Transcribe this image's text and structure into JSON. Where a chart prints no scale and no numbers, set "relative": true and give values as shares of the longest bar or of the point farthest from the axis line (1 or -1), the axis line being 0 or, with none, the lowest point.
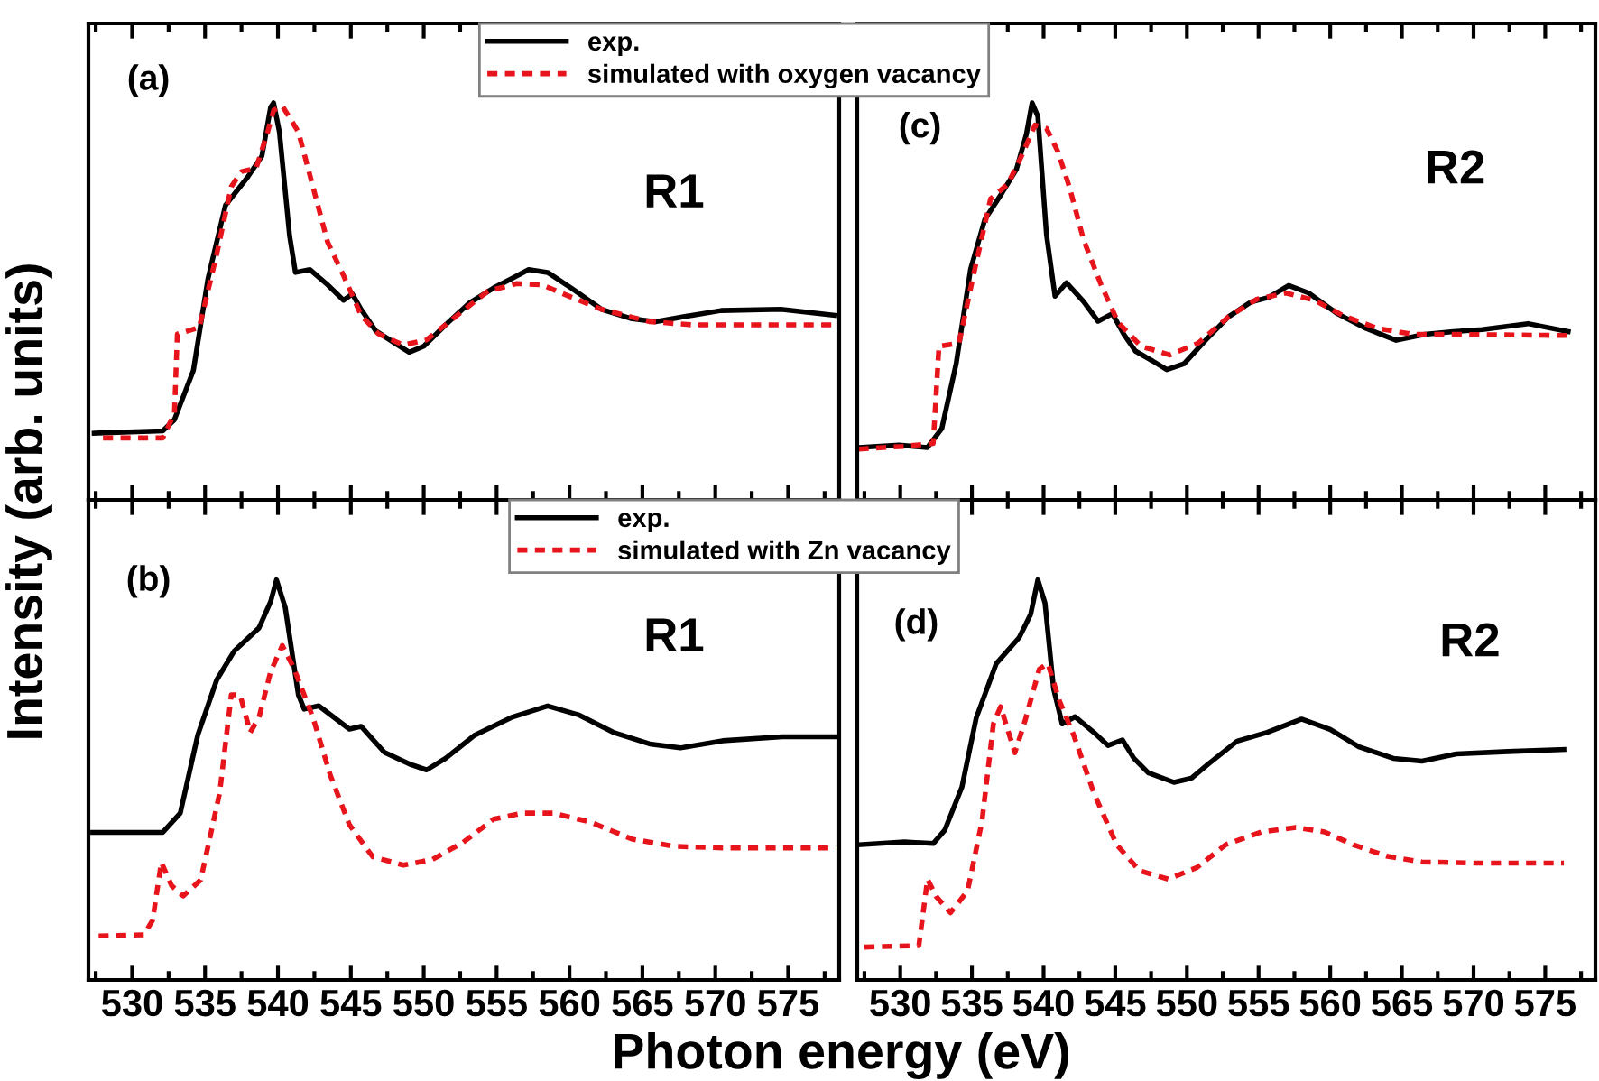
{
  "chart_data": [
    {
      "type": "line",
      "relative": true,
      "ylabel": "Intensity (arb. units)",
      "xlim": [
        527,
        578.5
      ],
      "xticks": [
        530,
        535,
        540,
        545,
        550,
        555,
        560,
        565,
        570,
        575
      ],
      "tick_labels": false,
      "legend": "top right",
      "grid": false,
      "annotations": [
        "(a)",
        "R1"
      ],
      "series": [
        {
          "name": "exp.",
          "color": "#000000",
          "line_style": "solid",
          "x": [
            527.4,
            532.1,
            532.9,
            534.2,
            535.2,
            536.4,
            537.9,
            538.9,
            539.5,
            539.7,
            540.1,
            540.8,
            541.2,
            542.2,
            543.4,
            544.5,
            545.1,
            545.7,
            546.7,
            548.0,
            549.0,
            550.0,
            551.5,
            553.1,
            554.8,
            556.0,
            557.2,
            558.5,
            560.1,
            562.2,
            564.2,
            565.9,
            568.4,
            570.4,
            574.5,
            578.2
          ],
          "values": [
            0.168,
            0.174,
            0.202,
            0.326,
            0.557,
            0.742,
            0.812,
            0.866,
            0.989,
            1.0,
            0.927,
            0.665,
            0.573,
            0.58,
            0.542,
            0.503,
            0.519,
            0.48,
            0.426,
            0.395,
            0.372,
            0.387,
            0.441,
            0.495,
            0.534,
            0.557,
            0.58,
            0.573,
            0.534,
            0.48,
            0.457,
            0.449,
            0.465,
            0.477,
            0.48,
            0.465
          ]
        },
        {
          "name": "simulated with oxygen vacancy",
          "color": "#e8141c",
          "line_style": "dashed",
          "x": [
            528.0,
            532.1,
            532.9,
            533.1,
            534.6,
            535.8,
            536.8,
            537.5,
            538.5,
            539.3,
            539.7,
            540.3,
            541.4,
            542.4,
            543.4,
            544.5,
            545.7,
            546.9,
            548.6,
            550.2,
            552.3,
            554.4,
            556.4,
            558.1,
            560.1,
            562.2,
            565.5,
            568.4,
            578.2
          ],
          "values": [
            0.156,
            0.156,
            0.218,
            0.418,
            0.434,
            0.619,
            0.789,
            0.827,
            0.835,
            0.927,
            0.981,
            0.992,
            0.927,
            0.789,
            0.65,
            0.565,
            0.465,
            0.418,
            0.39,
            0.403,
            0.465,
            0.526,
            0.545,
            0.542,
            0.511,
            0.48,
            0.449,
            0.441,
            0.441
          ]
        }
      ]
    },
    {
      "type": "line",
      "relative": true,
      "xlim": [
        527,
        578.5
      ],
      "xticks": [
        530,
        535,
        540,
        545,
        550,
        555,
        560,
        565,
        570,
        575
      ],
      "tick_labels": false,
      "grid": false,
      "annotations": [
        "(c)",
        "R2"
      ],
      "series": [
        {
          "color": "#000000",
          "line_style": "solid",
          "x": [
            527.1,
            529.9,
            531.9,
            532.9,
            533.9,
            534.9,
            535.9,
            537.1,
            538.1,
            538.8,
            539.2,
            539.6,
            540.2,
            540.8,
            541.6,
            542.8,
            543.8,
            544.8,
            545.6,
            546.4,
            547.6,
            548.6,
            549.8,
            551.3,
            552.9,
            554.5,
            555.7,
            557.1,
            558.5,
            560.5,
            562.5,
            564.6,
            566.6,
            568.6,
            570.6,
            573.8,
            576.6
          ],
          "values": [
            0.132,
            0.138,
            0.132,
            0.18,
            0.343,
            0.58,
            0.706,
            0.773,
            0.832,
            0.921,
            1.0,
            0.966,
            0.669,
            0.513,
            0.547,
            0.499,
            0.45,
            0.469,
            0.417,
            0.375,
            0.35,
            0.328,
            0.343,
            0.402,
            0.461,
            0.499,
            0.51,
            0.54,
            0.521,
            0.469,
            0.432,
            0.402,
            0.417,
            0.424,
            0.429,
            0.444,
            0.424
          ]
        },
        {
          "color": "#e8141c",
          "line_style": "dashed",
          "x": [
            527.1,
            530.3,
            532.3,
            532.7,
            534.1,
            535.1,
            536.3,
            537.5,
            538.5,
            539.4,
            540.2,
            541.0,
            541.8,
            542.8,
            544.0,
            545.2,
            546.8,
            548.8,
            550.8,
            552.9,
            554.9,
            556.9,
            558.9,
            560.9,
            563.3,
            565.8,
            568.6,
            576.6
          ],
          "values": [
            0.128,
            0.135,
            0.142,
            0.387,
            0.395,
            0.565,
            0.758,
            0.795,
            0.869,
            0.944,
            0.936,
            0.877,
            0.788,
            0.654,
            0.543,
            0.447,
            0.387,
            0.365,
            0.395,
            0.461,
            0.506,
            0.521,
            0.503,
            0.464,
            0.432,
            0.417,
            0.417,
            0.414
          ]
        }
      ]
    },
    {
      "type": "line",
      "relative": true,
      "xlabel": "Photon energy (eV)",
      "xlim": [
        527,
        578.5
      ],
      "xticks": [
        530,
        535,
        540,
        545,
        550,
        555,
        560,
        565,
        570,
        575
      ],
      "tick_labels": "x",
      "legend": "top right",
      "grid": false,
      "annotations": [
        "(b)",
        "R1"
      ],
      "series": [
        {
          "name": "exp.",
          "color": "#000000",
          "line_style": "solid",
          "x": [
            527.3,
            532.1,
            533.3,
            534.5,
            535.8,
            537.0,
            538.7,
            539.5,
            539.9,
            540.5,
            541.4,
            541.8,
            542.8,
            544.9,
            545.7,
            547.3,
            549.0,
            550.2,
            551.5,
            553.5,
            556.0,
            558.5,
            560.6,
            563.0,
            565.5,
            567.6,
            570.5,
            574.6,
            578.3
          ],
          "values": [
            0.369,
            0.369,
            0.417,
            0.612,
            0.75,
            0.822,
            0.88,
            0.946,
            1.0,
            0.931,
            0.713,
            0.677,
            0.685,
            0.627,
            0.634,
            0.569,
            0.54,
            0.525,
            0.554,
            0.612,
            0.656,
            0.685,
            0.663,
            0.619,
            0.59,
            0.58,
            0.598,
            0.608,
            0.608
          ]
        },
        {
          "name": "simulated with Zn vacancy",
          "color": "#e8141c",
          "line_style": "dashed",
          "x": [
            527.7,
            530.8,
            531.4,
            532.0,
            532.7,
            533.5,
            534.7,
            536.0,
            536.8,
            537.4,
            538.1,
            538.7,
            539.5,
            540.3,
            541.1,
            542.4,
            543.6,
            544.9,
            546.5,
            548.6,
            550.6,
            552.7,
            554.8,
            556.8,
            558.9,
            561.4,
            564.3,
            567.2,
            570.5,
            578.3
          ],
          "values": [
            0.11,
            0.113,
            0.149,
            0.294,
            0.236,
            0.21,
            0.25,
            0.467,
            0.713,
            0.713,
            0.619,
            0.656,
            0.771,
            0.836,
            0.779,
            0.656,
            0.511,
            0.388,
            0.308,
            0.287,
            0.301,
            0.344,
            0.402,
            0.417,
            0.417,
            0.395,
            0.352,
            0.334,
            0.33,
            0.33
          ]
        }
      ]
    },
    {
      "type": "line",
      "relative": true,
      "xlim": [
        527,
        578.5
      ],
      "xticks": [
        530,
        535,
        540,
        545,
        550,
        555,
        560,
        565,
        570,
        575
      ],
      "tick_labels": "x",
      "grid": false,
      "annotations": [
        "(d)",
        "R2"
      ],
      "series": [
        {
          "color": "#000000",
          "line_style": "solid",
          "x": [
            527.1,
            530.3,
            532.3,
            533.1,
            534.3,
            535.3,
            536.7,
            538.3,
            539.1,
            539.6,
            540.1,
            540.7,
            541.3,
            542.2,
            543.5,
            544.5,
            545.5,
            546.3,
            547.3,
            549.1,
            550.3,
            551.5,
            553.5,
            555.6,
            558.0,
            560.0,
            562.0,
            564.4,
            566.4,
            568.8,
            572.4,
            576.3
          ],
          "values": [
            0.338,
            0.345,
            0.341,
            0.374,
            0.482,
            0.655,
            0.791,
            0.856,
            0.914,
            1.0,
            0.942,
            0.727,
            0.64,
            0.658,
            0.619,
            0.586,
            0.6,
            0.554,
            0.518,
            0.494,
            0.504,
            0.54,
            0.597,
            0.619,
            0.652,
            0.626,
            0.583,
            0.554,
            0.547,
            0.565,
            0.571,
            0.576
          ]
        },
        {
          "color": "#e8141c",
          "line_style": "dashed",
          "x": [
            527.5,
            531.3,
            531.9,
            532.5,
            533.5,
            534.7,
            535.7,
            536.5,
            537.0,
            538.0,
            538.7,
            539.7,
            540.3,
            541.1,
            542.1,
            543.5,
            545.1,
            546.7,
            548.7,
            550.7,
            552.7,
            555.2,
            557.6,
            559.6,
            561.6,
            564.0,
            566.4,
            570.4,
            576.3
          ],
          "values": [
            0.082,
            0.086,
            0.252,
            0.209,
            0.168,
            0.223,
            0.396,
            0.64,
            0.683,
            0.568,
            0.647,
            0.777,
            0.791,
            0.698,
            0.612,
            0.468,
            0.338,
            0.273,
            0.252,
            0.281,
            0.338,
            0.37,
            0.381,
            0.37,
            0.338,
            0.309,
            0.295,
            0.292,
            0.292
          ]
        }
      ]
    }
  ]
}
